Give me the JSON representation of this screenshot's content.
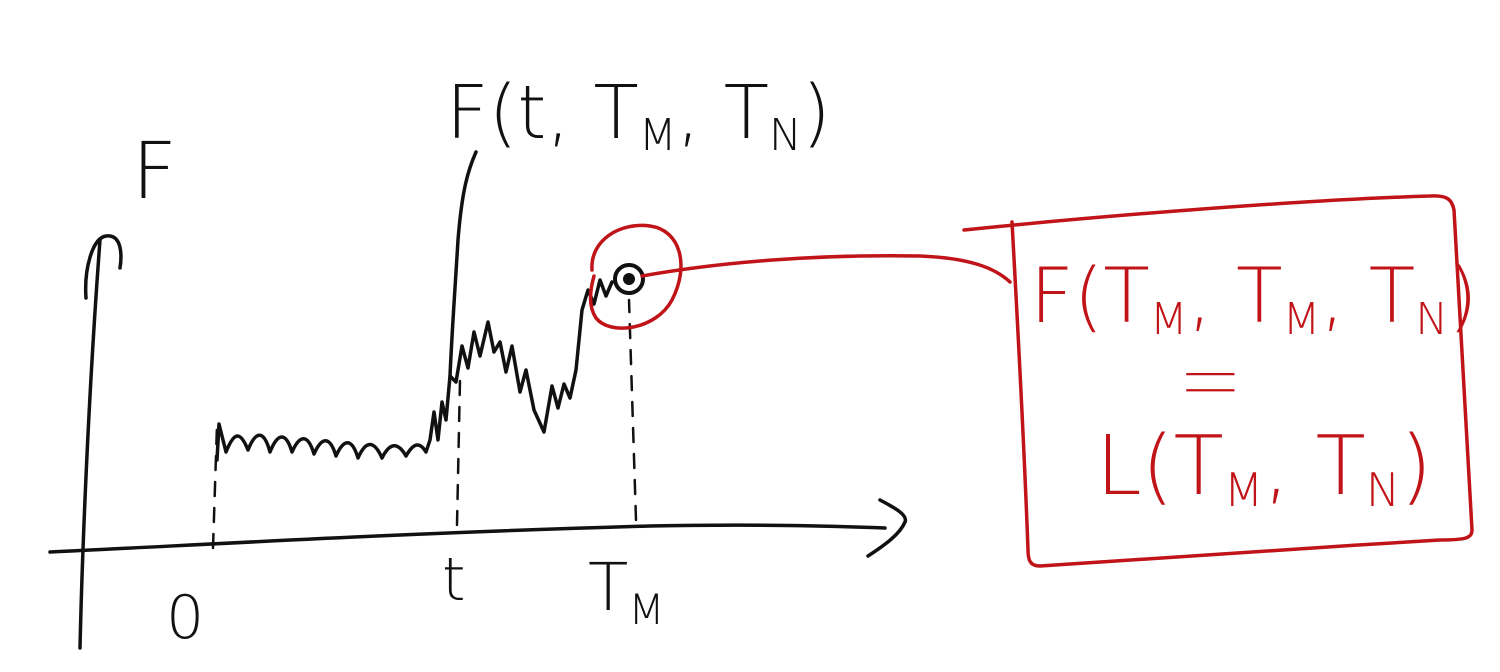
{
  "colors": {
    "ink": "#111111",
    "annotation": "#c01418",
    "background": "#ffffff"
  },
  "labels": {
    "y_axis": "F",
    "x_origin": "0",
    "x_t": "t",
    "x_tm": "T",
    "x_tm_sub": "M",
    "curve_label": "F(t, T",
    "curve_label_sub1": "M",
    "curve_label_mid": ", T",
    "curve_label_sub2": "N",
    "curve_label_end": ")"
  },
  "annotation_box": {
    "line1_a": "F(T",
    "line1_sub1": "M",
    "line1_b": ", T",
    "line1_sub2": "M",
    "line1_c": ", T",
    "line1_sub3": "N",
    "line1_d": ")",
    "equals": "||",
    "line2_a": "L(T",
    "line2_sub1": "M",
    "line2_b": ", T",
    "line2_sub2": "N",
    "line2_c": ")"
  }
}
